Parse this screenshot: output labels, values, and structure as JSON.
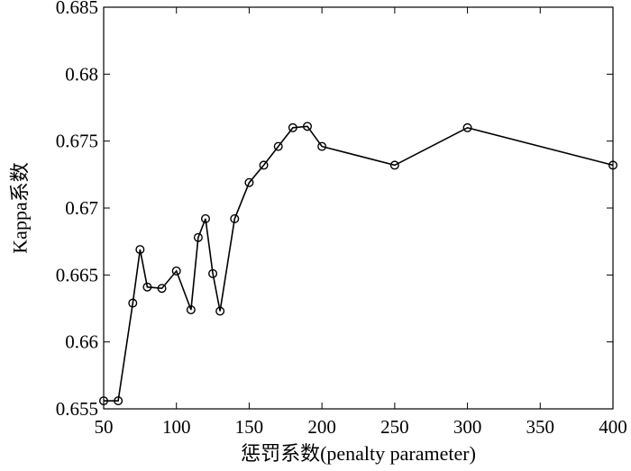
{
  "chart_data": {
    "type": "line",
    "title": "",
    "xlabel": "惩罚系数(penalty parameter)",
    "ylabel": "Kappa系数",
    "xlim": [
      50,
      400
    ],
    "ylim": [
      0.655,
      0.685
    ],
    "xticks": [
      50,
      100,
      150,
      200,
      250,
      300,
      350,
      400
    ],
    "xtick_labels": [
      "50",
      "100",
      "150",
      "200",
      "250",
      "300",
      "350",
      "400"
    ],
    "yticks": [
      0.655,
      0.66,
      0.665,
      0.67,
      0.675,
      0.68,
      0.685
    ],
    "ytick_labels": [
      "0.655",
      "0.66",
      "0.665",
      "0.67",
      "0.675",
      "0.68",
      "0.685"
    ],
    "grid": false,
    "marker": "circle",
    "line_color": "#000000",
    "series": [
      {
        "x": [
          50,
          60,
          70,
          75,
          80,
          90,
          100,
          110,
          115,
          120,
          125,
          130,
          140,
          150,
          160,
          170,
          180,
          190,
          200,
          250,
          300,
          400
        ],
        "y": [
          0.6556,
          0.6556,
          0.6629,
          0.6669,
          0.6641,
          0.664,
          0.6653,
          0.6624,
          0.6678,
          0.6692,
          0.6651,
          0.6623,
          0.6692,
          0.6719,
          0.6732,
          0.6746,
          0.676,
          0.6761,
          0.6746,
          0.6732,
          0.676,
          0.6732
        ]
      }
    ]
  }
}
